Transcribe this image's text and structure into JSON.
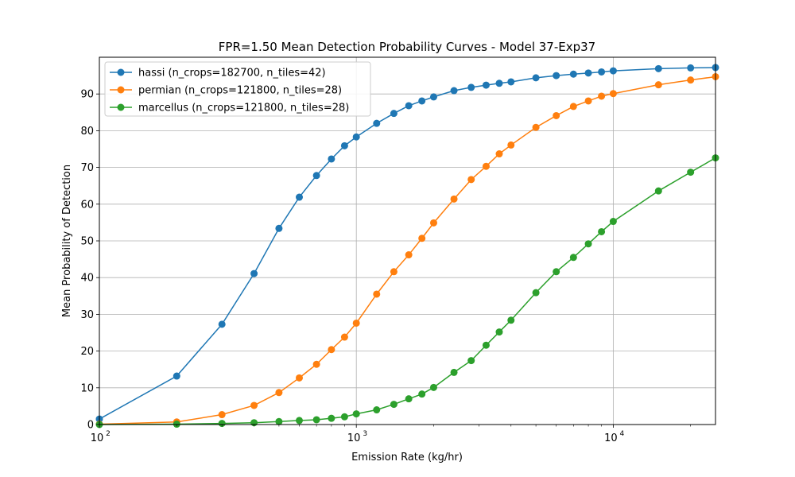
{
  "chart_data": {
    "type": "line",
    "title": "FPR=1.50 Mean Detection Probability Curves - Model 37-Exp37",
    "xlabel": "Emission Rate (kg/hr)",
    "ylabel": "Mean Probability of Detection",
    "x_scale": "log",
    "xlim": [
      100,
      25000
    ],
    "ylim": [
      0,
      100
    ],
    "x_major_ticks": [
      {
        "value": 100,
        "base": "10",
        "exp": "2"
      },
      {
        "value": 1000,
        "base": "10",
        "exp": "3"
      },
      {
        "value": 10000,
        "base": "10",
        "exp": "4"
      }
    ],
    "y_ticks": [
      0,
      10,
      20,
      30,
      40,
      50,
      60,
      70,
      80,
      90
    ],
    "grid": true,
    "legend_position": "top-left",
    "series": [
      {
        "name": "hassi (n_crops=182700, n_tiles=42)",
        "color": "#1f77b4",
        "points": [
          [
            100,
            1.5
          ],
          [
            200,
            13.2
          ],
          [
            300,
            27.3
          ],
          [
            400,
            41.1
          ],
          [
            500,
            53.4
          ],
          [
            600,
            61.9
          ],
          [
            700,
            67.8
          ],
          [
            800,
            72.3
          ],
          [
            900,
            75.9
          ],
          [
            1000,
            78.3
          ],
          [
            1200,
            82.0
          ],
          [
            1400,
            84.7
          ],
          [
            1600,
            86.8
          ],
          [
            1800,
            88.1
          ],
          [
            2000,
            89.2
          ],
          [
            2400,
            90.9
          ],
          [
            2800,
            91.8
          ],
          [
            3200,
            92.4
          ],
          [
            3600,
            92.9
          ],
          [
            4000,
            93.3
          ],
          [
            5000,
            94.4
          ],
          [
            6000,
            95.0
          ],
          [
            7000,
            95.4
          ],
          [
            8000,
            95.7
          ],
          [
            9000,
            96.0
          ],
          [
            10000,
            96.3
          ],
          [
            15000,
            96.9
          ],
          [
            20000,
            97.1
          ],
          [
            25000,
            97.2
          ]
        ]
      },
      {
        "name": "permian (n_crops=121800, n_tiles=28)",
        "color": "#ff7f0e",
        "points": [
          [
            100,
            0.1
          ],
          [
            200,
            0.7
          ],
          [
            300,
            2.7
          ],
          [
            400,
            5.2
          ],
          [
            500,
            8.7
          ],
          [
            600,
            12.7
          ],
          [
            700,
            16.4
          ],
          [
            800,
            20.4
          ],
          [
            900,
            23.8
          ],
          [
            1000,
            27.6
          ],
          [
            1200,
            35.5
          ],
          [
            1400,
            41.6
          ],
          [
            1600,
            46.2
          ],
          [
            1800,
            50.7
          ],
          [
            2000,
            54.9
          ],
          [
            2400,
            61.4
          ],
          [
            2800,
            66.7
          ],
          [
            3200,
            70.3
          ],
          [
            3600,
            73.7
          ],
          [
            4000,
            76.1
          ],
          [
            5000,
            80.9
          ],
          [
            6000,
            84.1
          ],
          [
            7000,
            86.6
          ],
          [
            8000,
            88.1
          ],
          [
            9000,
            89.4
          ],
          [
            10000,
            90.1
          ],
          [
            15000,
            92.5
          ],
          [
            20000,
            93.8
          ],
          [
            25000,
            94.7
          ]
        ]
      },
      {
        "name": "marcellus (n_crops=121800, n_tiles=28)",
        "color": "#2ca02c",
        "points": [
          [
            100,
            0.0
          ],
          [
            200,
            0.1
          ],
          [
            300,
            0.3
          ],
          [
            400,
            0.5
          ],
          [
            500,
            0.8
          ],
          [
            600,
            1.1
          ],
          [
            700,
            1.3
          ],
          [
            800,
            1.7
          ],
          [
            900,
            2.1
          ],
          [
            1000,
            2.9
          ],
          [
            1200,
            4.0
          ],
          [
            1400,
            5.5
          ],
          [
            1600,
            7.0
          ],
          [
            1800,
            8.3
          ],
          [
            2000,
            10.1
          ],
          [
            2400,
            14.2
          ],
          [
            2800,
            17.4
          ],
          [
            3200,
            21.6
          ],
          [
            3600,
            25.2
          ],
          [
            4000,
            28.4
          ],
          [
            5000,
            35.9
          ],
          [
            6000,
            41.6
          ],
          [
            7000,
            45.5
          ],
          [
            8000,
            49.2
          ],
          [
            9000,
            52.5
          ],
          [
            10000,
            55.3
          ],
          [
            15000,
            63.6
          ],
          [
            20000,
            68.7
          ],
          [
            25000,
            72.6
          ]
        ]
      }
    ]
  }
}
